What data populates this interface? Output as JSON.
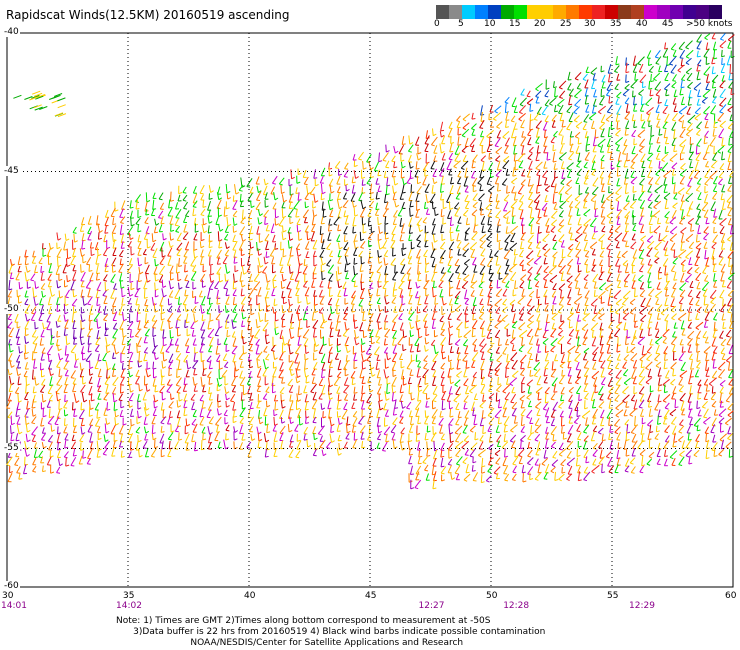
{
  "title": "Rapidscat Winds(12.5KM) 20160519 ascending",
  "legend": {
    "labels": [
      "0",
      "5",
      "10",
      "15",
      "20",
      "25",
      "30",
      "35",
      "40",
      "45",
      ">50 knots"
    ],
    "colors": [
      "#555555",
      "#8a8a8a",
      "#00ccff",
      "#0080ff",
      "#0040c0",
      "#00aa00",
      "#00e000",
      "#ffd000",
      "#ffcc00",
      "#ffaa00",
      "#ff7a00",
      "#ff3a00",
      "#ee2222",
      "#cc0000",
      "#8b3a1a",
      "#b04020",
      "#cc00cc",
      "#a000c0",
      "#7000b0",
      "#400090",
      "#4b0082",
      "#2a0060"
    ]
  },
  "map": {
    "lon_labels": [
      "30",
      "35",
      "40",
      "45",
      "50",
      "55",
      "60"
    ],
    "lat_labels": [
      "-40",
      "-45",
      "-50",
      "-55",
      "-60"
    ],
    "times": [
      {
        "lon": 30,
        "text": "14:01"
      },
      {
        "lon": 35,
        "text": "14:02"
      },
      {
        "lon": 47.5,
        "text": "12:27"
      },
      {
        "lon": 51,
        "text": "12:28"
      },
      {
        "lon": 56.2,
        "text": "12:29"
      }
    ]
  },
  "notes": [
    "Note: 1) Times are GMT 2)Times along bottom correspond to measurement at -50S",
    "      3)Data buffer is 22 hrs from 20160519 4) Black wind barbs indicate possible contamination",
    "                          NOAA/NESDIS/Center for Satellite Applications and Research"
  ]
}
